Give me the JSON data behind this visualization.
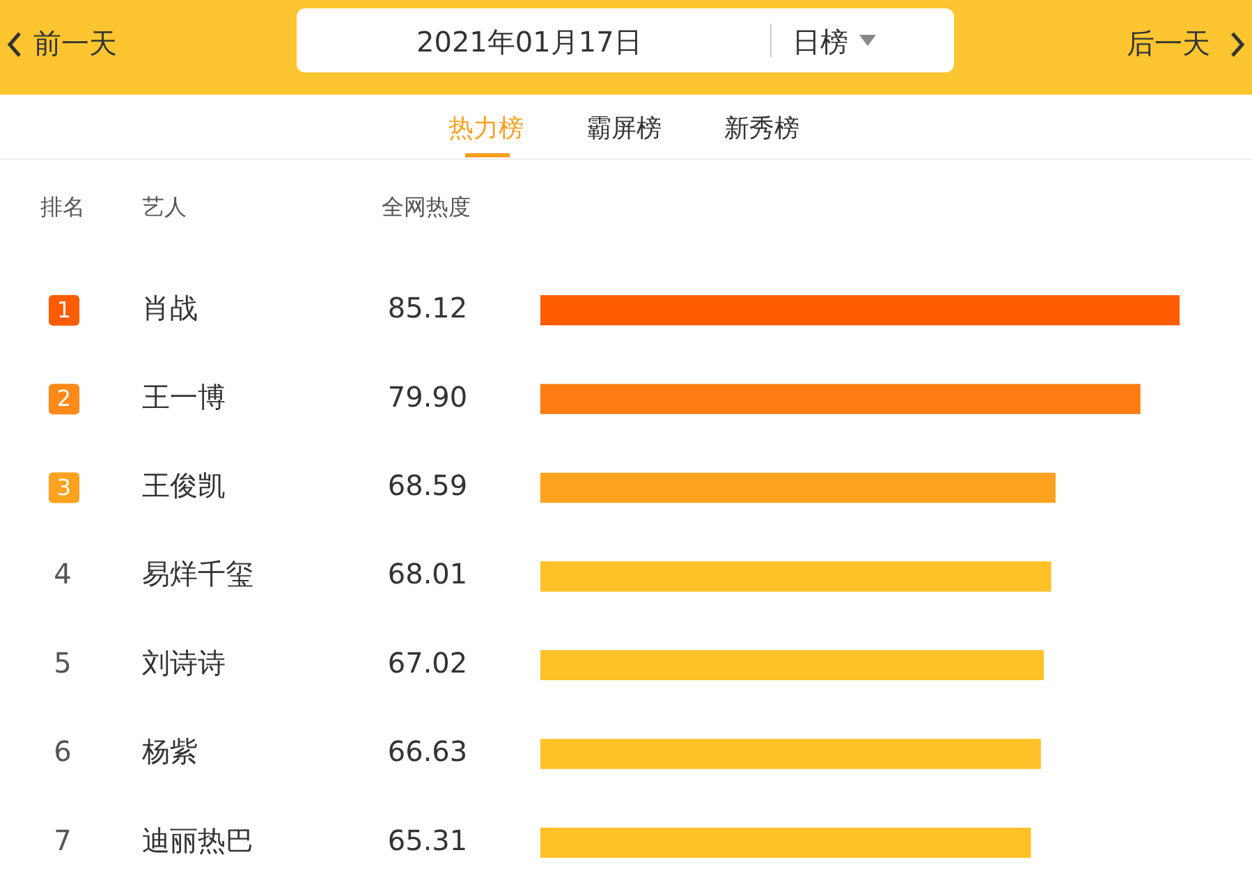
{
  "chart_data": {
    "type": "bar",
    "orientation": "horizontal",
    "title": "2021年01月17日",
    "xlabel": "全网热度",
    "ylabel": "艺人",
    "categories": [
      "肖战",
      "王一博",
      "王俊凯",
      "易烊千玺",
      "刘诗诗",
      "杨紫",
      "迪丽热巴"
    ],
    "values": [
      85.12,
      79.9,
      68.59,
      68.01,
      67.02,
      66.63,
      65.31
    ],
    "colors": [
      "#ff5b00",
      "#ff7c12",
      "#ffa21f",
      "#ffc128",
      "#ffc128",
      "#ffc128",
      "#ffc128"
    ],
    "value_labels": [
      "85.12",
      "79.90",
      "68.59",
      "68.01",
      "67.02",
      "66.63",
      "65.31"
    ],
    "legend": false,
    "annotations": [
      "前一天",
      "日榜",
      "后一天",
      "热力榜",
      "霸屏榜",
      "新秀榜",
      "排名",
      "1",
      "2",
      "3",
      "4",
      "5",
      "6",
      "7"
    ]
  }
}
